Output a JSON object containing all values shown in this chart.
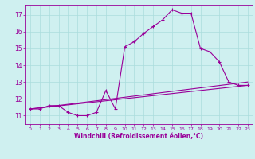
{
  "xlabel": "Windchill (Refroidissement éolien,°C)",
  "ylabel": "",
  "bg_color": "#cff0f0",
  "line_color": "#990099",
  "grid_color": "#aadddd",
  "xlim": [
    -0.5,
    23.5
  ],
  "ylim": [
    10.5,
    17.6
  ],
  "yticks": [
    11,
    12,
    13,
    14,
    15,
    16,
    17
  ],
  "xticks": [
    0,
    1,
    2,
    3,
    4,
    5,
    6,
    7,
    8,
    9,
    10,
    11,
    12,
    13,
    14,
    15,
    16,
    17,
    18,
    19,
    20,
    21,
    22,
    23
  ],
  "series": [
    {
      "x": [
        0,
        1,
        2,
        3,
        4,
        5,
        6,
        7,
        8,
        9,
        10,
        11,
        12,
        13,
        14,
        15,
        16,
        17,
        18,
        19,
        20,
        21,
        22,
        23
      ],
      "y": [
        11.4,
        11.4,
        11.6,
        11.6,
        11.2,
        11.0,
        11.0,
        11.2,
        12.5,
        11.4,
        15.1,
        15.4,
        15.9,
        16.3,
        16.7,
        17.3,
        17.1,
        17.1,
        15.0,
        14.8,
        14.2,
        13.0,
        12.8,
        12.8
      ]
    },
    {
      "x": [
        0,
        23
      ],
      "y": [
        11.4,
        12.8
      ]
    },
    {
      "x": [
        0,
        23
      ],
      "y": [
        11.4,
        13.0
      ]
    }
  ]
}
